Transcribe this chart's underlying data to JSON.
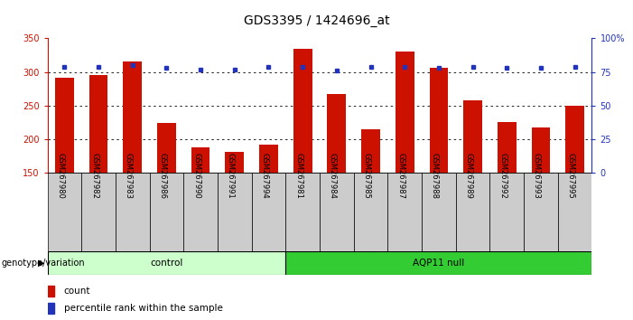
{
  "title": "GDS3395 / 1424696_at",
  "samples": [
    "GSM267980",
    "GSM267982",
    "GSM267983",
    "GSM267986",
    "GSM267990",
    "GSM267991",
    "GSM267994",
    "GSM267981",
    "GSM267984",
    "GSM267985",
    "GSM267987",
    "GSM267988",
    "GSM267989",
    "GSM267992",
    "GSM267993",
    "GSM267995"
  ],
  "bar_values": [
    292,
    296,
    315,
    224,
    188,
    181,
    192,
    335,
    267,
    215,
    330,
    306,
    258,
    225,
    218,
    250
  ],
  "percentile_values": [
    79,
    79,
    80,
    78,
    77,
    77,
    79,
    79,
    76,
    79,
    79,
    78,
    79,
    78,
    78,
    79
  ],
  "control_count": 7,
  "control_label": "control",
  "aqp_label": "AQP11 null",
  "genotype_label": "genotype/variation",
  "bar_color": "#cc1100",
  "dot_color": "#2233bb",
  "control_bg": "#ccffcc",
  "aqp_bg": "#33cc33",
  "xlabel_bg": "#cccccc",
  "ylim_left": [
    150,
    350
  ],
  "ylim_right": [
    0,
    100
  ],
  "yticks_left": [
    150,
    200,
    250,
    300,
    350
  ],
  "yticks_right": [
    0,
    25,
    50,
    75,
    100
  ],
  "grid_values": [
    200,
    250,
    300
  ],
  "legend_count_label": "count",
  "legend_pct_label": "percentile rank within the sample",
  "title_fontsize": 10,
  "tick_fontsize": 7,
  "bar_width": 0.55
}
